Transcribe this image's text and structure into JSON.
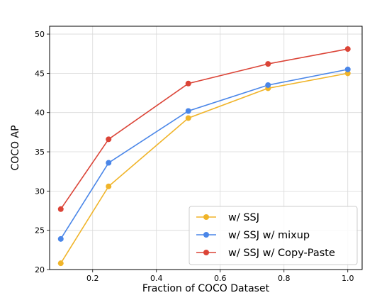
{
  "chart_data": {
    "type": "line",
    "title": "",
    "xlabel": "Fraction of COCO Dataset",
    "ylabel": "COCO AP",
    "xlim": [
      0.065,
      1.045
    ],
    "ylim": [
      20,
      51
    ],
    "xticks": [
      0.2,
      0.4,
      0.6,
      0.8,
      1.0
    ],
    "xtick_labels": [
      "0.2",
      "0.4",
      "0.6",
      "0.8",
      "1.0"
    ],
    "yticks": [
      20,
      25,
      30,
      35,
      40,
      45,
      50
    ],
    "ytick_labels": [
      "20",
      "25",
      "30",
      "35",
      "40",
      "45",
      "50"
    ],
    "grid": true,
    "legend_position": "bottom-right",
    "x": [
      0.1,
      0.25,
      0.5,
      0.75,
      1.0
    ],
    "series": [
      {
        "name": "w/ SSJ",
        "color": "#f0b429",
        "values": [
          20.8,
          30.6,
          39.3,
          43.1,
          45.0
        ]
      },
      {
        "name": "w/ SSJ w/ mixup",
        "color": "#4a86e8",
        "values": [
          23.9,
          33.6,
          40.2,
          43.5,
          45.5
        ]
      },
      {
        "name": "w/ SSJ w/ Copy-Paste",
        "color": "#db4437",
        "values": [
          27.7,
          36.6,
          43.7,
          46.2,
          48.1
        ]
      }
    ]
  }
}
